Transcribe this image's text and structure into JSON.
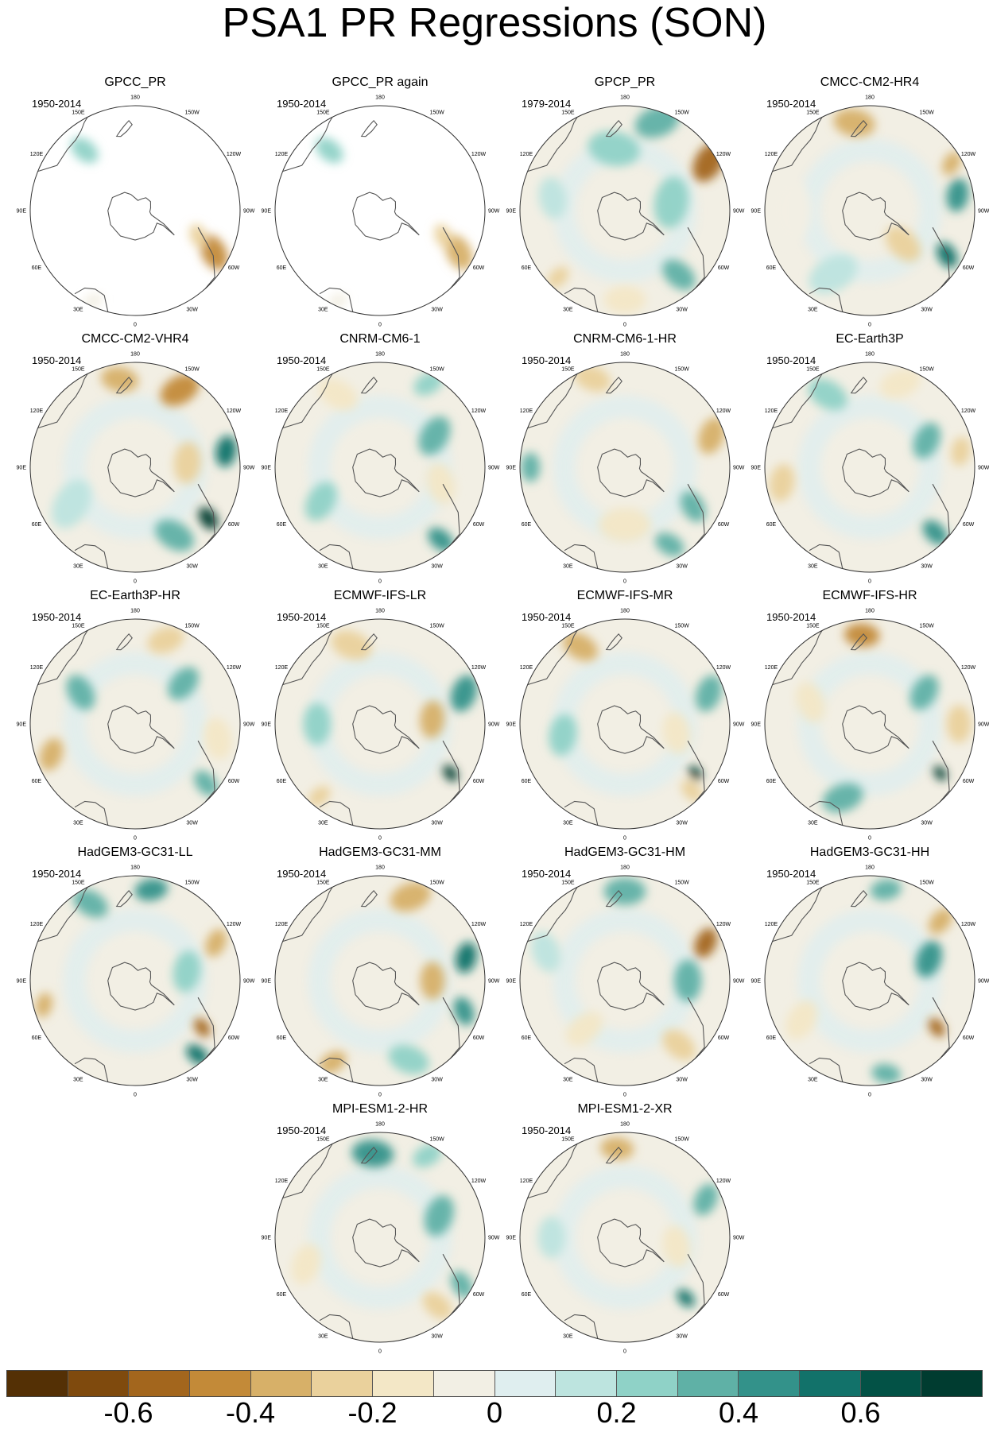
{
  "title": "PSA1 PR Regressions (SON)",
  "longitude_labels": [
    "0",
    "30E",
    "60E",
    "90E",
    "120E",
    "150E",
    "180",
    "150W",
    "120W",
    "90W",
    "60W",
    "30W"
  ],
  "panels": [
    {
      "name": "GPCC_PR",
      "period": "1950-2014",
      "coverage": "land-only",
      "blobs": [
        {
          "lon": -62,
          "r": 0.85,
          "v": -0.45,
          "s": 0.18
        },
        {
          "lon": -68,
          "r": 0.65,
          "v": -0.3,
          "s": 0.12
        },
        {
          "lon": 140,
          "r": 0.75,
          "v": 0.2,
          "s": 0.15
        },
        {
          "lon": 25,
          "r": 0.95,
          "v": -0.05,
          "s": 0.1
        }
      ]
    },
    {
      "name": "GPCC_PR again",
      "period": "1950-2014",
      "coverage": "land-only",
      "blobs": [
        {
          "lon": -62,
          "r": 0.85,
          "v": -0.4,
          "s": 0.18
        },
        {
          "lon": -68,
          "r": 0.65,
          "v": -0.25,
          "s": 0.12
        },
        {
          "lon": 140,
          "r": 0.75,
          "v": 0.2,
          "s": 0.15
        },
        {
          "lon": 25,
          "r": 0.95,
          "v": -0.1,
          "s": 0.1
        }
      ]
    },
    {
      "name": "GPCP_PR",
      "period": "1979-2014",
      "coverage": "global",
      "blobs": [
        {
          "lon": -120,
          "r": 0.92,
          "v": -0.55,
          "s": 0.2
        },
        {
          "lon": -160,
          "r": 0.9,
          "v": 0.35,
          "s": 0.22
        },
        {
          "lon": -40,
          "r": 0.8,
          "v": 0.3,
          "s": 0.18
        },
        {
          "lon": 45,
          "r": 0.9,
          "v": -0.3,
          "s": 0.12
        },
        {
          "lon": 170,
          "r": 0.6,
          "v": 0.2,
          "s": 0.25
        },
        {
          "lon": 0,
          "r": 0.85,
          "v": -0.2,
          "s": 0.2
        },
        {
          "lon": -100,
          "r": 0.45,
          "v": 0.2,
          "s": 0.25
        },
        {
          "lon": 100,
          "r": 0.7,
          "v": 0.15,
          "s": 0.2
        }
      ]
    },
    {
      "name": "CMCC-CM2-HR4",
      "period": "1950-2014",
      "coverage": "global",
      "blobs": [
        {
          "lon": -60,
          "r": 0.85,
          "v": 0.6,
          "s": 0.13
        },
        {
          "lon": -100,
          "r": 0.85,
          "v": 0.45,
          "s": 0.16
        },
        {
          "lon": 170,
          "r": 0.85,
          "v": -0.4,
          "s": 0.2
        },
        {
          "lon": -45,
          "r": 0.45,
          "v": -0.3,
          "s": 0.2
        },
        {
          "lon": -120,
          "r": 0.9,
          "v": -0.35,
          "s": 0.12
        },
        {
          "lon": 30,
          "r": 0.7,
          "v": 0.15,
          "s": 0.25
        },
        {
          "lon": 90,
          "r": 0.75,
          "v": -0.1,
          "s": 0.3
        }
      ]
    },
    {
      "name": "CMCC-CM2-VHR4",
      "period": "1950-2014",
      "coverage": "global",
      "blobs": [
        {
          "lon": -55,
          "r": 0.85,
          "v": 0.7,
          "s": 0.12
        },
        {
          "lon": -100,
          "r": 0.88,
          "v": 0.5,
          "s": 0.15
        },
        {
          "lon": -150,
          "r": 0.85,
          "v": -0.45,
          "s": 0.2
        },
        {
          "lon": 170,
          "r": 0.85,
          "v": -0.4,
          "s": 0.18
        },
        {
          "lon": -30,
          "r": 0.75,
          "v": 0.3,
          "s": 0.2
        },
        {
          "lon": -95,
          "r": 0.5,
          "v": -0.25,
          "s": 0.2
        },
        {
          "lon": 60,
          "r": 0.7,
          "v": 0.15,
          "s": 0.25
        }
      ]
    },
    {
      "name": "CNRM-CM6-1",
      "period": "1950-2014",
      "coverage": "global",
      "blobs": [
        {
          "lon": -40,
          "r": 0.9,
          "v": 0.45,
          "s": 0.14
        },
        {
          "lon": -120,
          "r": 0.6,
          "v": 0.35,
          "s": 0.2
        },
        {
          "lon": -75,
          "r": 0.6,
          "v": -0.2,
          "s": 0.2
        },
        {
          "lon": 150,
          "r": 0.8,
          "v": -0.2,
          "s": 0.2
        },
        {
          "lon": 60,
          "r": 0.65,
          "v": 0.2,
          "s": 0.2
        },
        {
          "lon": -150,
          "r": 0.92,
          "v": 0.25,
          "s": 0.15
        }
      ]
    },
    {
      "name": "CNRM-CM6-1-HR",
      "period": "1950-2014",
      "coverage": "global",
      "blobs": [
        {
          "lon": -110,
          "r": 0.88,
          "v": -0.4,
          "s": 0.18
        },
        {
          "lon": -60,
          "r": 0.75,
          "v": 0.35,
          "s": 0.16
        },
        {
          "lon": -30,
          "r": 0.85,
          "v": 0.35,
          "s": 0.15
        },
        {
          "lon": 90,
          "r": 0.9,
          "v": 0.3,
          "s": 0.14
        },
        {
          "lon": 160,
          "r": 0.9,
          "v": -0.25,
          "s": 0.18
        },
        {
          "lon": 0,
          "r": 0.55,
          "v": -0.15,
          "s": 0.25
        }
      ]
    },
    {
      "name": "EC-Earth3P",
      "period": "1950-2014",
      "coverage": "global",
      "blobs": [
        {
          "lon": -45,
          "r": 0.88,
          "v": 0.45,
          "s": 0.14
        },
        {
          "lon": -115,
          "r": 0.6,
          "v": 0.35,
          "s": 0.18
        },
        {
          "lon": -100,
          "r": 0.88,
          "v": -0.3,
          "s": 0.14
        },
        {
          "lon": 80,
          "r": 0.85,
          "v": -0.3,
          "s": 0.18
        },
        {
          "lon": 150,
          "r": 0.8,
          "v": 0.2,
          "s": 0.2
        },
        {
          "lon": -160,
          "r": 0.85,
          "v": -0.2,
          "s": 0.2
        }
      ]
    },
    {
      "name": "EC-Earth3P-HR",
      "period": "1950-2014",
      "coverage": "global",
      "blobs": [
        {
          "lon": -50,
          "r": 0.88,
          "v": 0.35,
          "s": 0.14
        },
        {
          "lon": -130,
          "r": 0.6,
          "v": 0.3,
          "s": 0.18
        },
        {
          "lon": 70,
          "r": 0.85,
          "v": -0.35,
          "s": 0.16
        },
        {
          "lon": -160,
          "r": 0.85,
          "v": -0.3,
          "s": 0.18
        },
        {
          "lon": 120,
          "r": 0.6,
          "v": 0.3,
          "s": 0.18
        },
        {
          "lon": -80,
          "r": 0.8,
          "v": -0.2,
          "s": 0.2
        }
      ]
    },
    {
      "name": "ECMWF-IFS-LR",
      "period": "1950-2014",
      "coverage": "global",
      "blobs": [
        {
          "lon": -55,
          "r": 0.82,
          "v": 0.7,
          "s": 0.09
        },
        {
          "lon": -110,
          "r": 0.85,
          "v": 0.45,
          "s": 0.18
        },
        {
          "lon": -95,
          "r": 0.5,
          "v": -0.35,
          "s": 0.18
        },
        {
          "lon": 40,
          "r": 0.9,
          "v": -0.3,
          "s": 0.12
        },
        {
          "lon": 160,
          "r": 0.8,
          "v": -0.25,
          "s": 0.2
        },
        {
          "lon": 90,
          "r": 0.6,
          "v": 0.2,
          "s": 0.2
        }
      ]
    },
    {
      "name": "ECMWF-IFS-MR",
      "period": "1950-2014",
      "coverage": "global",
      "blobs": [
        {
          "lon": -55,
          "r": 0.82,
          "v": 0.75,
          "s": 0.08
        },
        {
          "lon": -45,
          "r": 0.9,
          "v": -0.3,
          "s": 0.12
        },
        {
          "lon": 150,
          "r": 0.85,
          "v": -0.35,
          "s": 0.18
        },
        {
          "lon": -110,
          "r": 0.85,
          "v": 0.3,
          "s": 0.18
        },
        {
          "lon": -80,
          "r": 0.5,
          "v": -0.2,
          "s": 0.2
        },
        {
          "lon": 80,
          "r": 0.6,
          "v": 0.2,
          "s": 0.2
        }
      ]
    },
    {
      "name": "ECMWF-IFS-HR",
      "period": "1950-2014",
      "coverage": "global",
      "blobs": [
        {
          "lon": -55,
          "r": 0.82,
          "v": 0.75,
          "s": 0.08
        },
        {
          "lon": 175,
          "r": 0.85,
          "v": -0.5,
          "s": 0.17
        },
        {
          "lon": -120,
          "r": 0.6,
          "v": 0.35,
          "s": 0.18
        },
        {
          "lon": -90,
          "r": 0.85,
          "v": -0.25,
          "s": 0.18
        },
        {
          "lon": 20,
          "r": 0.75,
          "v": 0.3,
          "s": 0.2
        },
        {
          "lon": 110,
          "r": 0.6,
          "v": -0.15,
          "s": 0.2
        }
      ]
    },
    {
      "name": "HadGEM3-GC31-LL",
      "period": "1950-2014",
      "coverage": "global",
      "blobs": [
        {
          "lon": -55,
          "r": 0.78,
          "v": -0.55,
          "s": 0.1
        },
        {
          "lon": -40,
          "r": 0.92,
          "v": 0.5,
          "s": 0.12
        },
        {
          "lon": -170,
          "r": 0.88,
          "v": 0.45,
          "s": 0.16
        },
        {
          "lon": 75,
          "r": 0.9,
          "v": -0.35,
          "s": 0.12
        },
        {
          "lon": -115,
          "r": 0.85,
          "v": -0.35,
          "s": 0.14
        },
        {
          "lon": 150,
          "r": 0.85,
          "v": 0.3,
          "s": 0.18
        },
        {
          "lon": -100,
          "r": 0.5,
          "v": 0.25,
          "s": 0.2
        }
      ]
    },
    {
      "name": "HadGEM3-GC31-MM",
      "period": "1950-2014",
      "coverage": "global",
      "blobs": [
        {
          "lon": -70,
          "r": 0.85,
          "v": 0.45,
          "s": 0.14
        },
        {
          "lon": -105,
          "r": 0.85,
          "v": 0.5,
          "s": 0.15
        },
        {
          "lon": -90,
          "r": 0.5,
          "v": -0.35,
          "s": 0.18
        },
        {
          "lon": -160,
          "r": 0.85,
          "v": -0.35,
          "s": 0.2
        },
        {
          "lon": 30,
          "r": 0.9,
          "v": -0.35,
          "s": 0.14
        },
        {
          "lon": -20,
          "r": 0.8,
          "v": 0.25,
          "s": 0.2
        }
      ]
    },
    {
      "name": "HadGEM3-GC31-HM",
      "period": "1950-2014",
      "coverage": "global",
      "blobs": [
        {
          "lon": -115,
          "r": 0.85,
          "v": -0.55,
          "s": 0.15
        },
        {
          "lon": -90,
          "r": 0.6,
          "v": 0.35,
          "s": 0.2
        },
        {
          "lon": -40,
          "r": 0.8,
          "v": -0.3,
          "s": 0.18
        },
        {
          "lon": 180,
          "r": 0.85,
          "v": 0.3,
          "s": 0.2
        },
        {
          "lon": 40,
          "r": 0.6,
          "v": -0.2,
          "s": 0.2
        },
        {
          "lon": 110,
          "r": 0.8,
          "v": 0.15,
          "s": 0.2
        }
      ]
    },
    {
      "name": "HadGEM3-GC31-HH",
      "period": "1950-2014",
      "coverage": "global",
      "blobs": [
        {
          "lon": -55,
          "r": 0.78,
          "v": -0.6,
          "s": 0.1
        },
        {
          "lon": -110,
          "r": 0.6,
          "v": 0.4,
          "s": 0.18
        },
        {
          "lon": -130,
          "r": 0.88,
          "v": -0.35,
          "s": 0.14
        },
        {
          "lon": -10,
          "r": 0.9,
          "v": 0.35,
          "s": 0.14
        },
        {
          "lon": -170,
          "r": 0.88,
          "v": 0.35,
          "s": 0.15
        },
        {
          "lon": 60,
          "r": 0.75,
          "v": -0.2,
          "s": 0.2
        }
      ]
    },
    {
      "name": "MPI-ESM1-2-HR",
      "period": "1950-2014",
      "coverage": "global",
      "blobs": [
        {
          "lon": -40,
          "r": 0.85,
          "v": -0.3,
          "s": 0.16
        },
        {
          "lon": -60,
          "r": 0.9,
          "v": 0.3,
          "s": 0.14
        },
        {
          "lon": 175,
          "r": 0.8,
          "v": 0.45,
          "s": 0.2
        },
        {
          "lon": -110,
          "r": 0.6,
          "v": 0.35,
          "s": 0.2
        },
        {
          "lon": 70,
          "r": 0.75,
          "v": -0.15,
          "s": 0.2
        },
        {
          "lon": -150,
          "r": 0.9,
          "v": 0.2,
          "s": 0.15
        }
      ]
    },
    {
      "name": "MPI-ESM1-2-XR",
      "period": "1950-2014",
      "coverage": "global",
      "blobs": [
        {
          "lon": -45,
          "r": 0.82,
          "v": 0.55,
          "s": 0.1
        },
        {
          "lon": -115,
          "r": 0.85,
          "v": 0.3,
          "s": 0.16
        },
        {
          "lon": 175,
          "r": 0.85,
          "v": -0.4,
          "s": 0.16
        },
        {
          "lon": -80,
          "r": 0.5,
          "v": -0.2,
          "s": 0.2
        },
        {
          "lon": 90,
          "r": 0.7,
          "v": 0.15,
          "s": 0.2
        }
      ]
    }
  ],
  "colorbar": {
    "colors": [
      "#543005",
      "#7f4a0d",
      "#a3661d",
      "#c38a38",
      "#d7b068",
      "#ead19c",
      "#f3e7c6",
      "#f2efe4",
      "#dfeeef",
      "#bde4df",
      "#8fd2c7",
      "#5fb1a6",
      "#33928a",
      "#12726a",
      "#035246",
      "#003c30"
    ],
    "tick_labels": [
      "-0.6",
      "-0.4",
      "-0.2",
      "0",
      "0.2",
      "0.4",
      "0.6"
    ],
    "tick_values": [
      -0.6,
      -0.4,
      -0.2,
      0,
      0.2,
      0.4,
      0.6
    ],
    "min": -0.8,
    "max": 0.8
  }
}
